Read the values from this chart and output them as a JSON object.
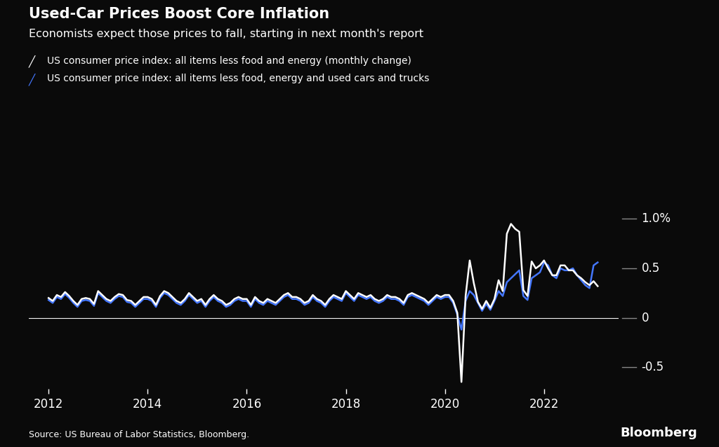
{
  "title": "Used-Car Prices Boost Core Inflation",
  "subtitle": "Economists expect those prices to fall, starting in next month's report",
  "legend1": "US consumer price index: all items less food and energy (monthly change)",
  "legend2": "US consumer price index: all items less food, energy and used cars and trucks",
  "source": "Source: US Bureau of Labor Statistics, Bloomberg.",
  "bloomberg_label": "Bloomberg",
  "bg_color": "#0a0a0a",
  "text_color": "#ffffff",
  "line1_color": "#ffffff",
  "line2_color": "#4477ff",
  "ytick_labels": [
    "1.0%",
    "0.5",
    "0",
    "-0.5"
  ],
  "ytick_values": [
    1.0,
    0.5,
    0.0,
    -0.5
  ],
  "ylim": [
    -0.72,
    1.18
  ],
  "xlim_start": 2011.6,
  "xlim_end": 2023.5,
  "xtick_years": [
    2012,
    2014,
    2016,
    2018,
    2020,
    2022
  ],
  "white_line_data": {
    "dates": [
      2012.0,
      2012.083,
      2012.167,
      2012.25,
      2012.333,
      2012.417,
      2012.5,
      2012.583,
      2012.667,
      2012.75,
      2012.833,
      2012.917,
      2013.0,
      2013.083,
      2013.167,
      2013.25,
      2013.333,
      2013.417,
      2013.5,
      2013.583,
      2013.667,
      2013.75,
      2013.833,
      2013.917,
      2014.0,
      2014.083,
      2014.167,
      2014.25,
      2014.333,
      2014.417,
      2014.5,
      2014.583,
      2014.667,
      2014.75,
      2014.833,
      2014.917,
      2015.0,
      2015.083,
      2015.167,
      2015.25,
      2015.333,
      2015.417,
      2015.5,
      2015.583,
      2015.667,
      2015.75,
      2015.833,
      2015.917,
      2016.0,
      2016.083,
      2016.167,
      2016.25,
      2016.333,
      2016.417,
      2016.5,
      2016.583,
      2016.667,
      2016.75,
      2016.833,
      2016.917,
      2017.0,
      2017.083,
      2017.167,
      2017.25,
      2017.333,
      2017.417,
      2017.5,
      2017.583,
      2017.667,
      2017.75,
      2017.833,
      2017.917,
      2018.0,
      2018.083,
      2018.167,
      2018.25,
      2018.333,
      2018.417,
      2018.5,
      2018.583,
      2018.667,
      2018.75,
      2018.833,
      2018.917,
      2019.0,
      2019.083,
      2019.167,
      2019.25,
      2019.333,
      2019.417,
      2019.5,
      2019.583,
      2019.667,
      2019.75,
      2019.833,
      2019.917,
      2020.0,
      2020.083,
      2020.167,
      2020.25,
      2020.333,
      2020.417,
      2020.5,
      2020.583,
      2020.667,
      2020.75,
      2020.833,
      2020.917,
      2021.0,
      2021.083,
      2021.167,
      2021.25,
      2021.333,
      2021.417,
      2021.5,
      2021.583,
      2021.667,
      2021.75,
      2021.833,
      2021.917,
      2022.0,
      2022.083,
      2022.167,
      2022.25,
      2022.333,
      2022.417,
      2022.5,
      2022.583,
      2022.667,
      2022.75,
      2022.833,
      2022.917,
      2023.0,
      2023.083
    ],
    "values": [
      0.2,
      0.17,
      0.23,
      0.21,
      0.26,
      0.22,
      0.17,
      0.13,
      0.19,
      0.2,
      0.19,
      0.14,
      0.27,
      0.23,
      0.19,
      0.17,
      0.21,
      0.24,
      0.23,
      0.18,
      0.17,
      0.13,
      0.17,
      0.21,
      0.21,
      0.19,
      0.13,
      0.22,
      0.27,
      0.25,
      0.21,
      0.17,
      0.15,
      0.19,
      0.25,
      0.21,
      0.17,
      0.19,
      0.13,
      0.19,
      0.23,
      0.19,
      0.17,
      0.13,
      0.15,
      0.19,
      0.21,
      0.19,
      0.19,
      0.13,
      0.21,
      0.17,
      0.15,
      0.19,
      0.17,
      0.15,
      0.19,
      0.23,
      0.25,
      0.21,
      0.21,
      0.19,
      0.15,
      0.17,
      0.23,
      0.19,
      0.17,
      0.13,
      0.19,
      0.23,
      0.21,
      0.19,
      0.27,
      0.23,
      0.19,
      0.25,
      0.23,
      0.21,
      0.23,
      0.19,
      0.17,
      0.19,
      0.23,
      0.21,
      0.21,
      0.19,
      0.15,
      0.23,
      0.25,
      0.23,
      0.21,
      0.19,
      0.15,
      0.19,
      0.23,
      0.21,
      0.23,
      0.23,
      0.17,
      0.05,
      -0.65,
      0.22,
      0.58,
      0.35,
      0.16,
      0.09,
      0.17,
      0.1,
      0.19,
      0.38,
      0.27,
      0.85,
      0.95,
      0.9,
      0.87,
      0.28,
      0.22,
      0.57,
      0.5,
      0.53,
      0.58,
      0.5,
      0.43,
      0.43,
      0.53,
      0.53,
      0.48,
      0.48,
      0.43,
      0.4,
      0.36,
      0.33,
      0.37,
      0.32
    ]
  },
  "blue_line_data": {
    "dates": [
      2012.0,
      2012.083,
      2012.167,
      2012.25,
      2012.333,
      2012.417,
      2012.5,
      2012.583,
      2012.667,
      2012.75,
      2012.833,
      2012.917,
      2013.0,
      2013.083,
      2013.167,
      2013.25,
      2013.333,
      2013.417,
      2013.5,
      2013.583,
      2013.667,
      2013.75,
      2013.833,
      2013.917,
      2014.0,
      2014.083,
      2014.167,
      2014.25,
      2014.333,
      2014.417,
      2014.5,
      2014.583,
      2014.667,
      2014.75,
      2014.833,
      2014.917,
      2015.0,
      2015.083,
      2015.167,
      2015.25,
      2015.333,
      2015.417,
      2015.5,
      2015.583,
      2015.667,
      2015.75,
      2015.833,
      2015.917,
      2016.0,
      2016.083,
      2016.167,
      2016.25,
      2016.333,
      2016.417,
      2016.5,
      2016.583,
      2016.667,
      2016.75,
      2016.833,
      2016.917,
      2017.0,
      2017.083,
      2017.167,
      2017.25,
      2017.333,
      2017.417,
      2017.5,
      2017.583,
      2017.667,
      2017.75,
      2017.833,
      2017.917,
      2018.0,
      2018.083,
      2018.167,
      2018.25,
      2018.333,
      2018.417,
      2018.5,
      2018.583,
      2018.667,
      2018.75,
      2018.833,
      2018.917,
      2019.0,
      2019.083,
      2019.167,
      2019.25,
      2019.333,
      2019.417,
      2019.5,
      2019.583,
      2019.667,
      2019.75,
      2019.833,
      2019.917,
      2020.0,
      2020.083,
      2020.167,
      2020.25,
      2020.333,
      2020.417,
      2020.5,
      2020.583,
      2020.667,
      2020.75,
      2020.833,
      2020.917,
      2021.0,
      2021.083,
      2021.167,
      2021.25,
      2021.333,
      2021.417,
      2021.5,
      2021.583,
      2021.667,
      2021.75,
      2021.833,
      2021.917,
      2022.0,
      2022.083,
      2022.167,
      2022.25,
      2022.333,
      2022.417,
      2022.5,
      2022.583,
      2022.667,
      2022.75,
      2022.833,
      2022.917,
      2023.0,
      2023.083
    ],
    "values": [
      0.18,
      0.15,
      0.21,
      0.19,
      0.24,
      0.2,
      0.15,
      0.11,
      0.17,
      0.18,
      0.17,
      0.12,
      0.25,
      0.21,
      0.17,
      0.15,
      0.19,
      0.22,
      0.21,
      0.16,
      0.15,
      0.11,
      0.15,
      0.19,
      0.19,
      0.17,
      0.11,
      0.2,
      0.25,
      0.23,
      0.19,
      0.15,
      0.13,
      0.17,
      0.23,
      0.19,
      0.15,
      0.17,
      0.11,
      0.17,
      0.21,
      0.17,
      0.15,
      0.11,
      0.13,
      0.17,
      0.19,
      0.17,
      0.17,
      0.11,
      0.19,
      0.15,
      0.13,
      0.17,
      0.15,
      0.13,
      0.17,
      0.21,
      0.23,
      0.19,
      0.19,
      0.17,
      0.13,
      0.15,
      0.21,
      0.17,
      0.15,
      0.11,
      0.17,
      0.21,
      0.19,
      0.17,
      0.25,
      0.21,
      0.17,
      0.23,
      0.21,
      0.19,
      0.21,
      0.17,
      0.15,
      0.17,
      0.21,
      0.19,
      0.19,
      0.17,
      0.13,
      0.21,
      0.23,
      0.21,
      0.19,
      0.17,
      0.13,
      0.17,
      0.21,
      0.19,
      0.21,
      0.21,
      0.15,
      0.03,
      -0.12,
      0.17,
      0.27,
      0.23,
      0.15,
      0.07,
      0.14,
      0.08,
      0.17,
      0.27,
      0.22,
      0.36,
      0.4,
      0.44,
      0.48,
      0.22,
      0.18,
      0.4,
      0.43,
      0.46,
      0.56,
      0.53,
      0.43,
      0.4,
      0.5,
      0.48,
      0.48,
      0.5,
      0.43,
      0.38,
      0.33,
      0.3,
      0.53,
      0.56
    ]
  }
}
